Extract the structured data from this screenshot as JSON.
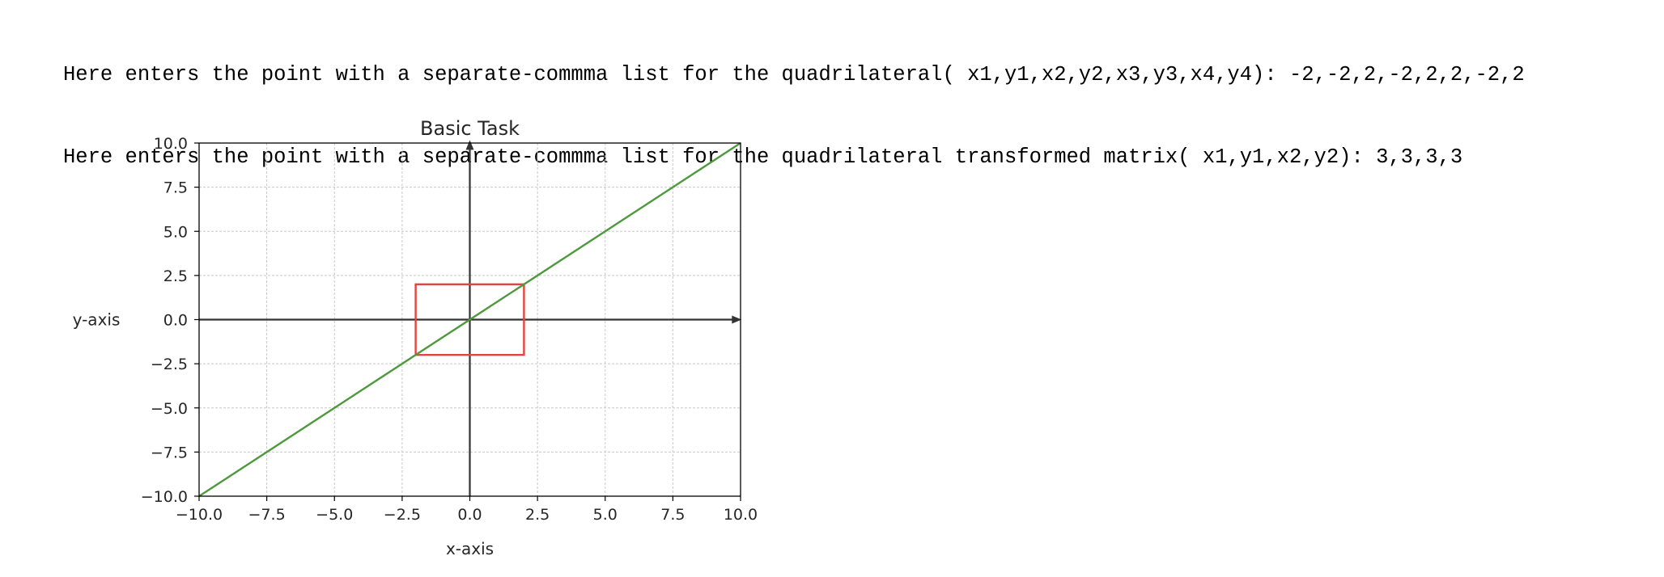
{
  "console": {
    "lines": [
      "Here enters the point with a separate-commma list for the quadrilateral( x1,y1,x2,y2,x3,y3,x4,y4): -2,-2,2,-2,2,2,-2,2",
      "Here enters the point with a separate-commma list for the quadrilateral transformed matrix( x1,y1,x2,y2): 3,3,3,3"
    ]
  },
  "chart_data": {
    "type": "line",
    "title": "Basic Task",
    "xlabel": "x-axis",
    "ylabel": "y-axis",
    "xlim": [
      -10,
      10
    ],
    "ylim": [
      -10,
      10
    ],
    "xticks": [
      "−10.0",
      "−7.5",
      "−5.0",
      "−2.5",
      "0.0",
      "2.5",
      "5.0",
      "7.5",
      "10.0"
    ],
    "yticks": [
      "10.0",
      "7.5",
      "5.0",
      "2.5",
      "0.0",
      "−2.5",
      "−5.0",
      "−7.5",
      "−10.0"
    ],
    "grid": true,
    "grid_values": [
      -10,
      -7.5,
      -5,
      -2.5,
      0,
      2.5,
      5,
      7.5,
      10
    ],
    "origin_axes": {
      "x_arrow_end": 9.8,
      "y_arrow_end": 9.8,
      "color": "#333333"
    },
    "series": [
      {
        "x": [
          -2,
          2,
          2,
          -2,
          -2
        ],
        "y": [
          -2,
          -2,
          2,
          2,
          -2
        ],
        "color": "#e0463f"
      },
      {
        "x": [
          -10,
          10
        ],
        "y": [
          -10,
          10
        ],
        "color": "#4d9a3c"
      }
    ]
  }
}
